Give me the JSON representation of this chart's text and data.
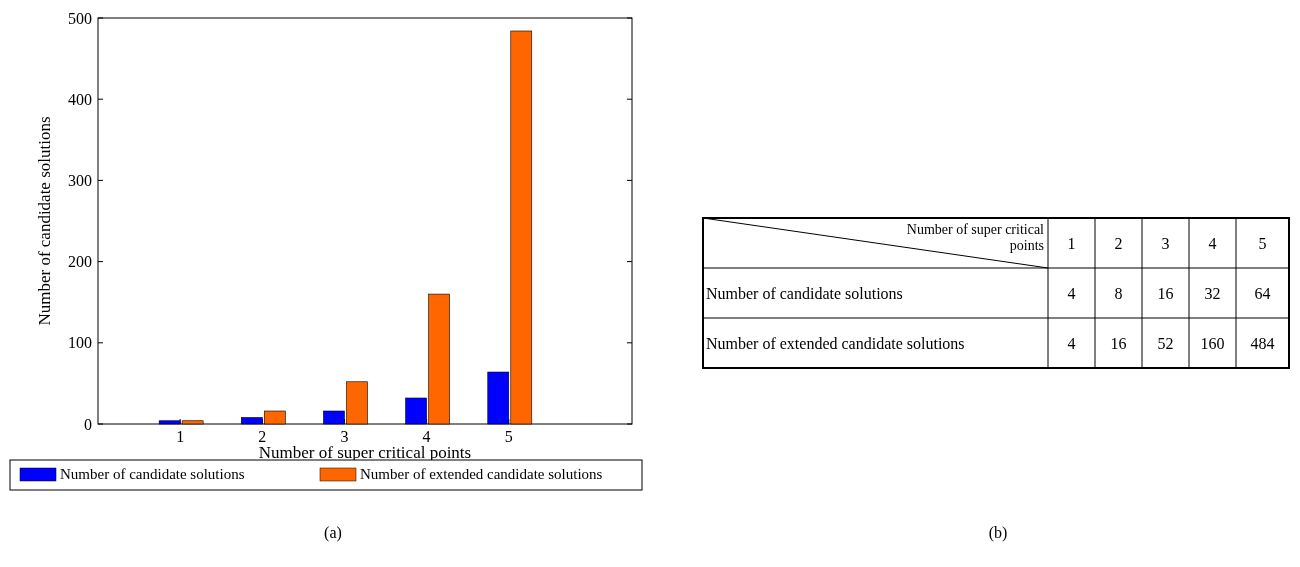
{
  "chart_data": [
    {
      "type": "bar",
      "xlabel": "Number of super critical points",
      "ylabel": "Number of candidate solutions",
      "categories": [
        "1",
        "2",
        "3",
        "4",
        "5"
      ],
      "series": [
        {
          "name": "Number of candidate solutions",
          "color": "#0000ff",
          "values": [
            4,
            8,
            16,
            32,
            64
          ]
        },
        {
          "name": "Number of extended candidate solutions",
          "color": "#ff6600",
          "values": [
            4,
            16,
            52,
            160,
            484
          ]
        }
      ],
      "ylim": [
        0,
        500
      ],
      "yticks": [
        0,
        100,
        200,
        300,
        400,
        500
      ],
      "legend": "bottom",
      "annotations": [
        "(a)"
      ]
    },
    {
      "type": "heatmap",
      "xlabel": "Number of super critical points",
      "categories": [
        "1",
        "2",
        "3",
        "4",
        "5"
      ],
      "y_categories": [
        "Number of candidate solutions",
        "Number of extended candidate solutions"
      ],
      "cells": [
        [
          4,
          8,
          16,
          32,
          64
        ],
        [
          4,
          16,
          52,
          160,
          484
        ]
      ],
      "data_labels": true,
      "annotations": [
        "(b)"
      ]
    }
  ]
}
